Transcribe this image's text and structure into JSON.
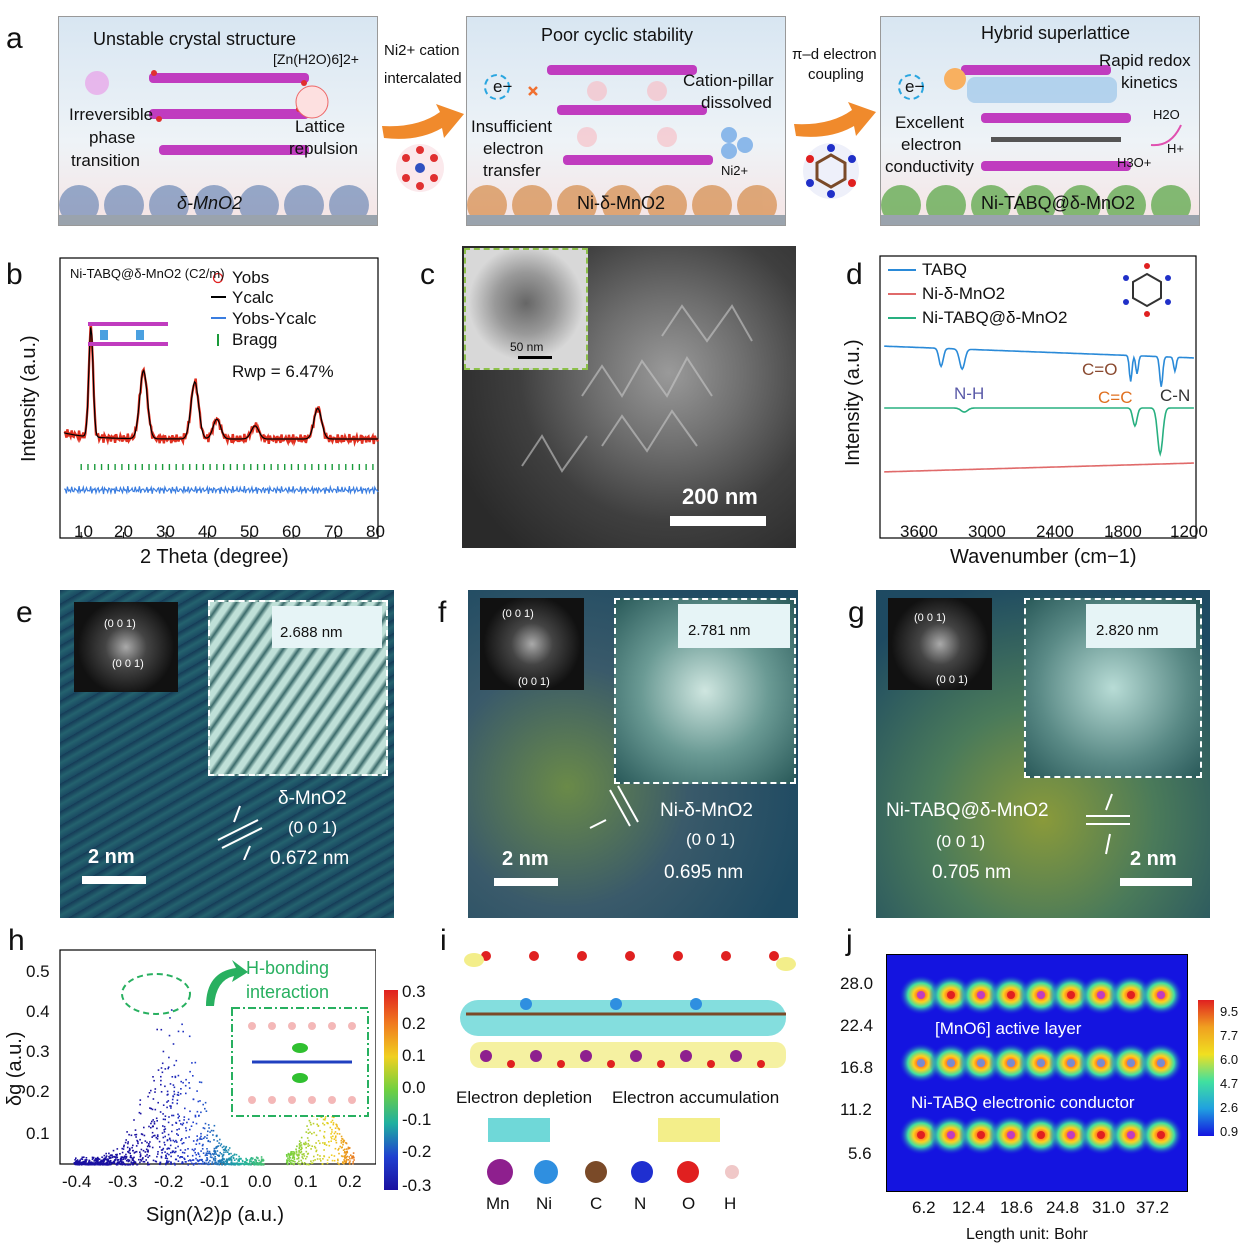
{
  "panel_labels": [
    "a",
    "b",
    "c",
    "d",
    "e",
    "f",
    "g",
    "h",
    "i",
    "j"
  ],
  "a": {
    "p1_title": "Unstable crystal structure",
    "p1_l1": "Irreversible",
    "p1_l2": "phase",
    "p1_l3": "transition",
    "p1_zn": "[Zn(H2O)6]2+",
    "p1_r1": "Lattice",
    "p1_r2": "repulsion",
    "p1_base": "δ-MnO2",
    "arr1_l1": "Ni2+ cation",
    "arr1_l2": "intercalated",
    "p2_title": "Poor cyclic stability",
    "p2_l1": "Insufficient",
    "p2_l2": "electron",
    "p2_l3": "transfer",
    "p2_r1": "Cation-pillar",
    "p2_r2": "dissolved",
    "p2_ni": "Ni2+",
    "p2_base": "Ni-δ-MnO2",
    "arr2_l1": "π–d electron",
    "arr2_l2": "coupling",
    "p3_title": "Hybrid superlattice",
    "p3_r1": "Rapid  redox",
    "p3_r2": "kinetics",
    "p3_l1": "Excellent",
    "p3_l2": "electron",
    "p3_l3": "conductivity",
    "p3_h2o": "H2O",
    "p3_h3o": "H3O+",
    "p3_h": "H+",
    "p3_base": "Ni-TABQ@δ-MnO2",
    "e_label": "e−"
  },
  "b": {
    "title": "Ni-TABQ@δ-MnO2 (C2/m)",
    "legend": [
      "Yobs",
      "Ycalc",
      "Yobs-Ycalc",
      "Bragg"
    ],
    "rwp": "Rwp = 6.47%",
    "xlabel": "2 Theta (degree)",
    "ylabel": "Intensity (a.u.)",
    "xticks": [
      "10",
      "20",
      "30",
      "40",
      "50",
      "60",
      "70",
      "80"
    ]
  },
  "c": {
    "scale_inset": "50 nm",
    "scale_main": "200 nm"
  },
  "d": {
    "legend": [
      "TABQ",
      "Ni-δ-MnO2",
      "Ni-TABQ@δ-MnO2"
    ],
    "ann": [
      "N-H",
      "C=O",
      "C=C",
      "C-N"
    ],
    "xlabel": "Wavenumber (cm−1)",
    "ylabel": "Intensity (a.u.)",
    "xticks": [
      "3600",
      "3000",
      "2400",
      "1800",
      "1200"
    ]
  },
  "e": {
    "fft1": "(0 0 1)",
    "fft2": "(0 0 1)",
    "d_inset": "2.688 nm",
    "mat": "δ-MnO2",
    "plane": "(0 0 1)",
    "d": "0.672 nm",
    "scale": "2 nm"
  },
  "f": {
    "fft1": "(0 0 1)",
    "fft2": "(0 0 1)",
    "d_inset": "2.781 nm",
    "mat": "Ni-δ-MnO2",
    "plane": "(0 0 1)",
    "d": "0.695 nm",
    "scale": "2 nm"
  },
  "g": {
    "fft1": "(0 0 1)",
    "fft2": "(0 0 1)",
    "d_inset": "2.820 nm",
    "mat": "Ni-TABQ@δ-MnO2",
    "plane": "(0 0 1)",
    "d": "0.705 nm",
    "scale": "2 nm"
  },
  "h": {
    "annotation_l1": "H-bonding",
    "annotation_l2": "interaction",
    "ylabel": "δg (a.u.)",
    "xlabel": "Sign(λ2)ρ (a.u.)",
    "yticks": [
      "0.5",
      "0.4",
      "0.3",
      "0.2",
      "0.1"
    ],
    "xticks": [
      "-0.4",
      "-0.3",
      "-0.2",
      "-0.1",
      "0.0",
      "0.1",
      "0.2"
    ],
    "cbar": [
      "0.3",
      "0.2",
      "0.1",
      "0.0",
      "-0.1",
      "-0.2",
      "-0.3"
    ]
  },
  "i": {
    "depletion": "Electron depletion",
    "accumulation": "Electron accumulation",
    "atoms": [
      "Mn",
      "Ni",
      "C",
      "N",
      "O",
      "H"
    ],
    "colors": {
      "depletion": "#6fd8d8",
      "accumulation": "#f3ee8a",
      "Mn": "#8e1f8e",
      "Ni": "#2f8fe0",
      "C": "#7a4a28",
      "N": "#1f2fd0",
      "O": "#e02020",
      "H": "#f0c8c8"
    }
  },
  "j": {
    "label1": "[MnO6] active layer",
    "label2": "Ni-TABQ electronic conductor",
    "yticks": [
      "28.0",
      "22.4",
      "16.8",
      "11.2",
      "5.6"
    ],
    "xticks": [
      "6.2",
      "12.4",
      "18.6",
      "24.8",
      "31.0",
      "37.2"
    ],
    "cbar": [
      "9.5",
      "7.7",
      "6.0",
      "4.7",
      "2.6",
      "0.9"
    ],
    "xlabel": "Length unit: Bohr"
  },
  "chart_data": [
    {
      "type": "line",
      "panel": "b",
      "xlim": [
        5,
        80
      ],
      "xlabel": "2 Theta (degree)",
      "ylabel": "Intensity (a.u.)",
      "peaks_2theta": [
        12.3,
        24.7,
        36.8,
        42.0,
        51.0,
        65.8
      ]
    },
    {
      "type": "line",
      "panel": "d",
      "xlim": [
        4000,
        1000
      ],
      "xlabel": "Wavenumber (cm−1)",
      "ylabel": "Intensity (a.u.)",
      "series": [
        {
          "name": "TABQ"
        },
        {
          "name": "Ni-δ-MnO2"
        },
        {
          "name": "Ni-TABQ@δ-MnO2"
        }
      ]
    },
    {
      "type": "scatter",
      "panel": "h",
      "xlim": [
        -0.45,
        0.25
      ],
      "ylim": [
        0.02,
        0.55
      ],
      "xlabel": "Sign(λ2)ρ (a.u.)",
      "ylabel": "δg (a.u.)",
      "color_range": [
        -0.3,
        0.3
      ]
    },
    {
      "type": "heatmap",
      "panel": "j",
      "xlabel": "Length unit: Bohr",
      "color_range": [
        0.9,
        9.5
      ]
    }
  ]
}
